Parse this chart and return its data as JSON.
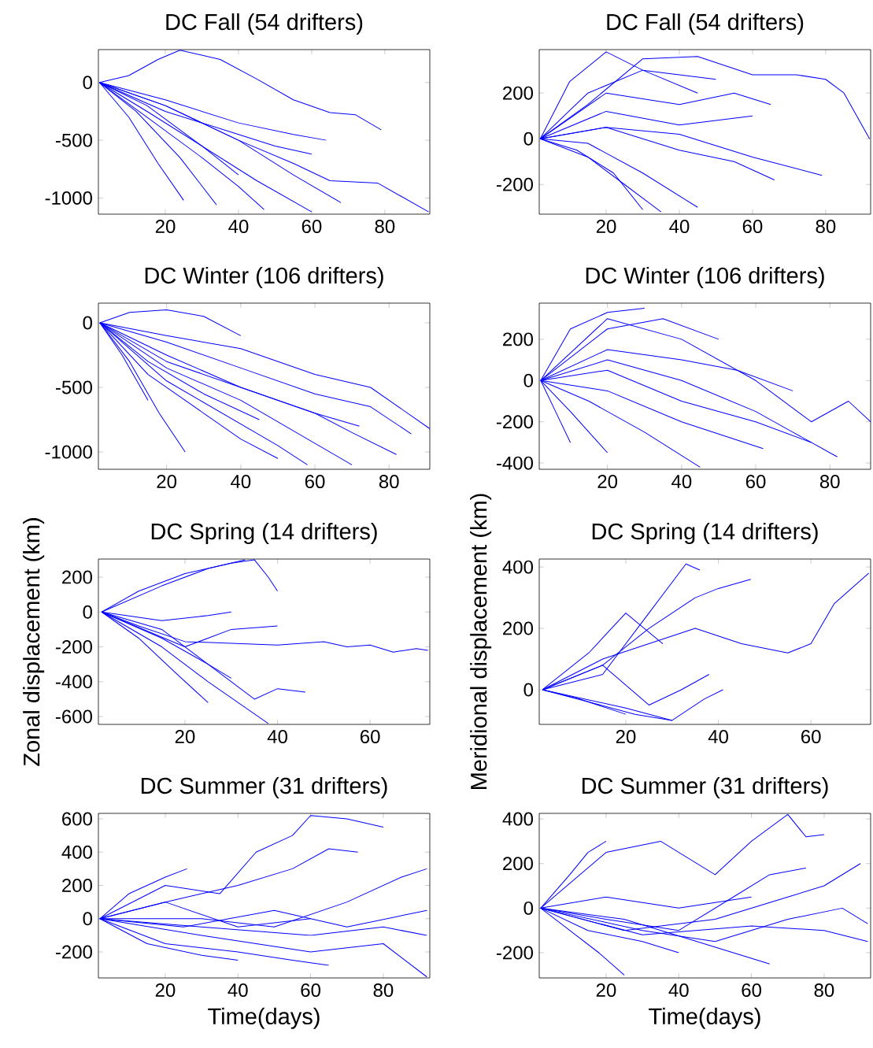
{
  "chart_data": [
    {
      "type": "line",
      "title": "DC Fall (54 drifters)",
      "xlim": [
        1.7,
        92.3
      ],
      "ylim": [
        -1140,
        285
      ],
      "xticks": [
        20,
        40,
        60,
        80
      ],
      "yticks": [
        -1000,
        -500,
        0
      ],
      "series": [
        {
          "color": "#0000ff",
          "x": [
            2,
            10,
            18,
            24,
            35,
            45,
            55,
            65,
            72,
            79
          ],
          "values": [
            0,
            60,
            200,
            280,
            200,
            30,
            -150,
            -260,
            -280,
            -410
          ]
        },
        {
          "color": "#0000ff",
          "x": [
            2,
            20,
            40,
            55,
            65,
            78,
            92
          ],
          "values": [
            0,
            -200,
            -500,
            -700,
            -850,
            -870,
            -1120
          ]
        },
        {
          "color": "#0000ff",
          "x": [
            2,
            15,
            30,
            45,
            60
          ],
          "values": [
            0,
            -250,
            -550,
            -850,
            -1120
          ]
        },
        {
          "color": "#0000ff",
          "x": [
            2,
            10,
            18,
            25
          ],
          "values": [
            0,
            -300,
            -700,
            -1020
          ]
        },
        {
          "color": "#0000ff",
          "x": [
            2,
            12,
            24,
            34
          ],
          "values": [
            0,
            -250,
            -650,
            -1060
          ]
        },
        {
          "color": "#0000ff",
          "x": [
            2,
            20,
            40,
            55,
            68
          ],
          "values": [
            0,
            -200,
            -500,
            -800,
            -1040
          ]
        },
        {
          "color": "#0000ff",
          "x": [
            2,
            20,
            40,
            55,
            64
          ],
          "values": [
            0,
            -150,
            -350,
            -450,
            -500
          ]
        },
        {
          "color": "#0000ff",
          "x": [
            2,
            15,
            30,
            40,
            47
          ],
          "values": [
            0,
            -300,
            -650,
            -900,
            -1100
          ]
        },
        {
          "color": "#0000ff",
          "x": [
            2,
            20,
            40,
            50,
            60
          ],
          "values": [
            0,
            -250,
            -450,
            -550,
            -620
          ]
        },
        {
          "color": "#0000ff",
          "x": [
            2,
            15,
            30,
            40
          ],
          "values": [
            0,
            -200,
            -550,
            -800
          ]
        }
      ]
    },
    {
      "type": "line",
      "title": "DC Fall (54 drifters)",
      "xlim": [
        1.7,
        92.3
      ],
      "ylim": [
        -330,
        390
      ],
      "xticks": [
        20,
        40,
        60,
        80
      ],
      "yticks": [
        -200,
        0,
        200
      ],
      "series": [
        {
          "color": "#0000ff",
          "x": [
            2,
            15,
            30,
            45,
            60,
            72,
            80,
            85,
            92
          ],
          "values": [
            0,
            150,
            350,
            360,
            280,
            280,
            260,
            200,
            0
          ]
        },
        {
          "color": "#0000ff",
          "x": [
            2,
            20,
            40,
            60,
            79
          ],
          "values": [
            0,
            50,
            20,
            -80,
            -160
          ]
        },
        {
          "color": "#0000ff",
          "x": [
            2,
            15,
            25,
            35
          ],
          "values": [
            0,
            -80,
            -200,
            -320
          ]
        },
        {
          "color": "#0000ff",
          "x": [
            2,
            12,
            22,
            30
          ],
          "values": [
            0,
            -50,
            -150,
            -310
          ]
        },
        {
          "color": "#0000ff",
          "x": [
            2,
            10,
            20,
            30,
            45
          ],
          "values": [
            0,
            250,
            380,
            300,
            200
          ]
        },
        {
          "color": "#0000ff",
          "x": [
            2,
            20,
            40,
            55,
            65
          ],
          "values": [
            0,
            200,
            150,
            200,
            150
          ]
        },
        {
          "color": "#0000ff",
          "x": [
            2,
            20,
            40,
            55,
            66
          ],
          "values": [
            0,
            50,
            -50,
            -100,
            -180
          ]
        },
        {
          "color": "#0000ff",
          "x": [
            2,
            15,
            30,
            45
          ],
          "values": [
            0,
            -20,
            -150,
            -300
          ]
        },
        {
          "color": "#0000ff",
          "x": [
            2,
            20,
            40,
            60
          ],
          "values": [
            0,
            120,
            60,
            100
          ]
        },
        {
          "color": "#0000ff",
          "x": [
            2,
            15,
            30,
            50
          ],
          "values": [
            0,
            200,
            300,
            260
          ]
        }
      ]
    },
    {
      "type": "line",
      "title": "DC Winter (106 drifters)",
      "xlim": [
        1.6,
        91
      ],
      "ylim": [
        -1134,
        152
      ],
      "xticks": [
        20,
        40,
        60,
        80
      ],
      "yticks": [
        -1000,
        -500,
        0
      ],
      "series": [
        {
          "color": "#0000ff",
          "x": [
            2,
            20,
            40,
            60,
            75,
            91
          ],
          "values": [
            0,
            -100,
            -200,
            -400,
            -500,
            -820
          ]
        },
        {
          "color": "#0000ff",
          "x": [
            2,
            20,
            40,
            60,
            75,
            86
          ],
          "values": [
            0,
            -150,
            -350,
            -550,
            -650,
            -860
          ]
        },
        {
          "color": "#0000ff",
          "x": [
            2,
            20,
            40,
            60,
            70,
            82
          ],
          "values": [
            0,
            -300,
            -500,
            -700,
            -850,
            -1020
          ]
        },
        {
          "color": "#0000ff",
          "x": [
            2,
            20,
            40,
            55,
            70
          ],
          "values": [
            0,
            -350,
            -600,
            -850,
            -1100
          ]
        },
        {
          "color": "#0000ff",
          "x": [
            2,
            20,
            35,
            50,
            58
          ],
          "values": [
            0,
            -450,
            -700,
            -950,
            -1100
          ]
        },
        {
          "color": "#0000ff",
          "x": [
            2,
            15,
            30,
            40,
            50
          ],
          "values": [
            0,
            -400,
            -700,
            -900,
            -1050
          ]
        },
        {
          "color": "#0000ff",
          "x": [
            2,
            10,
            18,
            25
          ],
          "values": [
            0,
            -300,
            -700,
            -1000
          ]
        },
        {
          "color": "#0000ff",
          "x": [
            2,
            10,
            20,
            30,
            40
          ],
          "values": [
            0,
            80,
            100,
            50,
            -100
          ]
        },
        {
          "color": "#0000ff",
          "x": [
            2,
            20,
            40,
            60,
            72
          ],
          "values": [
            0,
            -250,
            -500,
            -700,
            -800
          ]
        },
        {
          "color": "#0000ff",
          "x": [
            2,
            15,
            30,
            45
          ],
          "values": [
            0,
            -300,
            -550,
            -750
          ]
        },
        {
          "color": "#0000ff",
          "x": [
            2,
            8,
            15
          ],
          "values": [
            0,
            -250,
            -600
          ]
        }
      ]
    },
    {
      "type": "line",
      "title": "DC Winter (106 drifters)",
      "xlim": [
        1.6,
        91
      ],
      "ylim": [
        -430,
        375
      ],
      "xticks": [
        20,
        40,
        60,
        80
      ],
      "yticks": [
        -400,
        -200,
        0,
        200
      ],
      "series": [
        {
          "color": "#0000ff",
          "x": [
            2,
            20,
            40,
            60,
            75,
            85,
            91
          ],
          "values": [
            0,
            300,
            200,
            0,
            -200,
            -100,
            -200
          ]
        },
        {
          "color": "#0000ff",
          "x": [
            2,
            20,
            40,
            60,
            70,
            82
          ],
          "values": [
            0,
            100,
            0,
            -150,
            -250,
            -370
          ]
        },
        {
          "color": "#0000ff",
          "x": [
            2,
            20,
            40,
            60,
            75
          ],
          "values": [
            0,
            50,
            -100,
            -200,
            -300
          ]
        },
        {
          "color": "#0000ff",
          "x": [
            2,
            15,
            30,
            45
          ],
          "values": [
            0,
            -100,
            -250,
            -420
          ]
        },
        {
          "color": "#0000ff",
          "x": [
            2,
            10,
            20
          ],
          "values": [
            0,
            -150,
            -350
          ]
        },
        {
          "color": "#0000ff",
          "x": [
            2,
            20,
            40,
            62
          ],
          "values": [
            0,
            -50,
            -200,
            -330
          ]
        },
        {
          "color": "#0000ff",
          "x": [
            2,
            10,
            20,
            30
          ],
          "values": [
            0,
            250,
            330,
            350
          ]
        },
        {
          "color": "#0000ff",
          "x": [
            2,
            20,
            35,
            50
          ],
          "values": [
            0,
            250,
            300,
            200
          ]
        },
        {
          "color": "#0000ff",
          "x": [
            2,
            20,
            40,
            55,
            70
          ],
          "values": [
            0,
            150,
            100,
            50,
            -50
          ]
        },
        {
          "color": "#0000ff",
          "x": [
            2,
            6,
            10
          ],
          "values": [
            0,
            -150,
            -300
          ]
        }
      ]
    },
    {
      "type": "line",
      "title": "DC Spring (14 drifters)",
      "ylabel": "Zonal displacement (km)",
      "xlim": [
        1.3,
        72.9
      ],
      "ylim": [
        -645,
        304
      ],
      "xticks": [
        20,
        40,
        60
      ],
      "yticks": [
        -600,
        -400,
        -200,
        0,
        200
      ],
      "series": [
        {
          "color": "#0000ff",
          "x": [
            2,
            10,
            20,
            30,
            40,
            50,
            55,
            60,
            65,
            70,
            72.5
          ],
          "values": [
            0,
            -80,
            -170,
            -180,
            -190,
            -170,
            -200,
            -190,
            -230,
            -210,
            -220
          ]
        },
        {
          "color": "#0000ff",
          "x": [
            2,
            10,
            20,
            30,
            35,
            38,
            40
          ],
          "values": [
            0,
            120,
            220,
            280,
            300,
            200,
            120
          ]
        },
        {
          "color": "#0000ff",
          "x": [
            2,
            15,
            25,
            33
          ],
          "values": [
            0,
            150,
            250,
            300
          ]
        },
        {
          "color": "#0000ff",
          "x": [
            2,
            15,
            25,
            35,
            40,
            46
          ],
          "values": [
            0,
            -100,
            -300,
            -500,
            -440,
            -460
          ]
        },
        {
          "color": "#0000ff",
          "x": [
            2,
            15,
            25,
            38
          ],
          "values": [
            0,
            -200,
            -400,
            -640
          ]
        },
        {
          "color": "#0000ff",
          "x": [
            2,
            10,
            18,
            25
          ],
          "values": [
            0,
            -150,
            -350,
            -520
          ]
        },
        {
          "color": "#0000ff",
          "x": [
            2,
            15,
            25,
            30
          ],
          "values": [
            0,
            -50,
            -20,
            0
          ]
        },
        {
          "color": "#0000ff",
          "x": [
            2,
            20,
            30,
            40
          ],
          "values": [
            0,
            -200,
            -100,
            -80
          ]
        },
        {
          "color": "#0000ff",
          "x": [
            2,
            15,
            25,
            30
          ],
          "values": [
            0,
            -150,
            -300,
            -380
          ]
        }
      ]
    },
    {
      "type": "line",
      "title": "DC Spring (14 drifters)",
      "ylabel": "Meridional displacement (km)",
      "xlim": [
        1.3,
        72.9
      ],
      "ylim": [
        -113,
        426
      ],
      "xticks": [
        20,
        40,
        60
      ],
      "yticks": [
        0,
        200,
        400
      ],
      "series": [
        {
          "color": "#0000ff",
          "x": [
            2,
            15,
            25,
            35,
            45,
            55,
            60,
            65,
            72.5
          ],
          "values": [
            0,
            100,
            150,
            200,
            150,
            120,
            150,
            280,
            380
          ]
        },
        {
          "color": "#0000ff",
          "x": [
            2,
            15,
            25,
            35,
            40,
            47
          ],
          "values": [
            0,
            80,
            200,
            300,
            330,
            360
          ]
        },
        {
          "color": "#0000ff",
          "x": [
            2,
            15,
            25,
            33,
            36
          ],
          "values": [
            0,
            50,
            250,
            410,
            390
          ]
        },
        {
          "color": "#0000ff",
          "x": [
            2,
            20,
            30,
            37,
            41
          ],
          "values": [
            0,
            -60,
            -100,
            -30,
            0
          ]
        },
        {
          "color": "#0000ff",
          "x": [
            2,
            15,
            25,
            32,
            38
          ],
          "values": [
            0,
            80,
            -50,
            0,
            50
          ]
        },
        {
          "color": "#0000ff",
          "x": [
            2,
            12,
            22,
            30
          ],
          "values": [
            0,
            -40,
            -80,
            -100
          ]
        },
        {
          "color": "#0000ff",
          "x": [
            2,
            12,
            20,
            28
          ],
          "values": [
            0,
            120,
            250,
            150
          ]
        },
        {
          "color": "#0000ff",
          "x": [
            2,
            10,
            20
          ],
          "values": [
            0,
            -30,
            -80
          ]
        }
      ]
    },
    {
      "type": "line",
      "title": "DC Summer (31 drifters)",
      "xlabel": "Time(days)",
      "xlim": [
        1.6,
        92.8
      ],
      "ylim": [
        -356,
        633
      ],
      "xticks": [
        20,
        40,
        60,
        80
      ],
      "yticks": [
        -200,
        0,
        200,
        400,
        600
      ],
      "series": [
        {
          "color": "#0000ff",
          "x": [
            2,
            20,
            35,
            45,
            55,
            60,
            70,
            80
          ],
          "values": [
            0,
            200,
            150,
            400,
            500,
            620,
            600,
            550
          ]
        },
        {
          "color": "#0000ff",
          "x": [
            2,
            20,
            40,
            55,
            65,
            73
          ],
          "values": [
            0,
            100,
            200,
            300,
            420,
            400
          ]
        },
        {
          "color": "#0000ff",
          "x": [
            2,
            30,
            50,
            70,
            85,
            92
          ],
          "values": [
            0,
            0,
            -50,
            100,
            250,
            300
          ]
        },
        {
          "color": "#0000ff",
          "x": [
            2,
            30,
            60,
            80,
            92
          ],
          "values": [
            0,
            -100,
            -200,
            -150,
            -350
          ]
        },
        {
          "color": "#0000ff",
          "x": [
            2,
            25,
            50,
            70,
            92
          ],
          "values": [
            0,
            -50,
            50,
            -50,
            50
          ]
        },
        {
          "color": "#0000ff",
          "x": [
            2,
            20,
            40,
            55,
            65
          ],
          "values": [
            0,
            -150,
            -200,
            -250,
            -280
          ]
        },
        {
          "color": "#0000ff",
          "x": [
            2,
            15,
            30,
            40
          ],
          "values": [
            0,
            -150,
            -220,
            -250
          ]
        },
        {
          "color": "#0000ff",
          "x": [
            2,
            10,
            20,
            26
          ],
          "values": [
            0,
            150,
            250,
            300
          ]
        },
        {
          "color": "#0000ff",
          "x": [
            2,
            20,
            40,
            60
          ],
          "values": [
            0,
            100,
            -50,
            0
          ]
        },
        {
          "color": "#0000ff",
          "x": [
            2,
            30,
            60,
            80,
            92
          ],
          "values": [
            0,
            -50,
            -100,
            -50,
            -100
          ]
        }
      ]
    },
    {
      "type": "line",
      "title": "DC Summer (31 drifters)",
      "xlabel": "Time(days)",
      "xlim": [
        1.6,
        92.8
      ],
      "ylim": [
        -313,
        425
      ],
      "xticks": [
        20,
        40,
        60,
        80
      ],
      "yticks": [
        -200,
        0,
        200,
        400
      ],
      "series": [
        {
          "color": "#0000ff",
          "x": [
            2,
            20,
            35,
            50,
            60,
            70,
            75,
            80
          ],
          "values": [
            0,
            250,
            300,
            150,
            300,
            420,
            320,
            330
          ]
        },
        {
          "color": "#0000ff",
          "x": [
            2,
            20,
            40,
            55,
            65,
            75
          ],
          "values": [
            0,
            -50,
            -100,
            50,
            150,
            180
          ]
        },
        {
          "color": "#0000ff",
          "x": [
            2,
            25,
            50,
            70,
            80,
            90
          ],
          "values": [
            0,
            -100,
            -50,
            50,
            100,
            200
          ]
        },
        {
          "color": "#0000ff",
          "x": [
            2,
            30,
            50,
            70,
            85,
            92
          ],
          "values": [
            0,
            -100,
            -150,
            -50,
            0,
            -70
          ]
        },
        {
          "color": "#0000ff",
          "x": [
            2,
            10,
            18,
            25
          ],
          "values": [
            0,
            -100,
            -200,
            -300
          ]
        },
        {
          "color": "#0000ff",
          "x": [
            2,
            15,
            30,
            40
          ],
          "values": [
            0,
            -100,
            -150,
            -200
          ]
        },
        {
          "color": "#0000ff",
          "x": [
            2,
            25,
            45,
            65
          ],
          "values": [
            0,
            -50,
            -150,
            -250
          ]
        },
        {
          "color": "#0000ff",
          "x": [
            2,
            10,
            15,
            20
          ],
          "values": [
            0,
            150,
            250,
            300
          ]
        },
        {
          "color": "#0000ff",
          "x": [
            2,
            30,
            60,
            80,
            92
          ],
          "values": [
            0,
            -120,
            -80,
            -100,
            -150
          ]
        },
        {
          "color": "#0000ff",
          "x": [
            2,
            20,
            40,
            60
          ],
          "values": [
            0,
            50,
            0,
            50
          ]
        }
      ]
    }
  ]
}
